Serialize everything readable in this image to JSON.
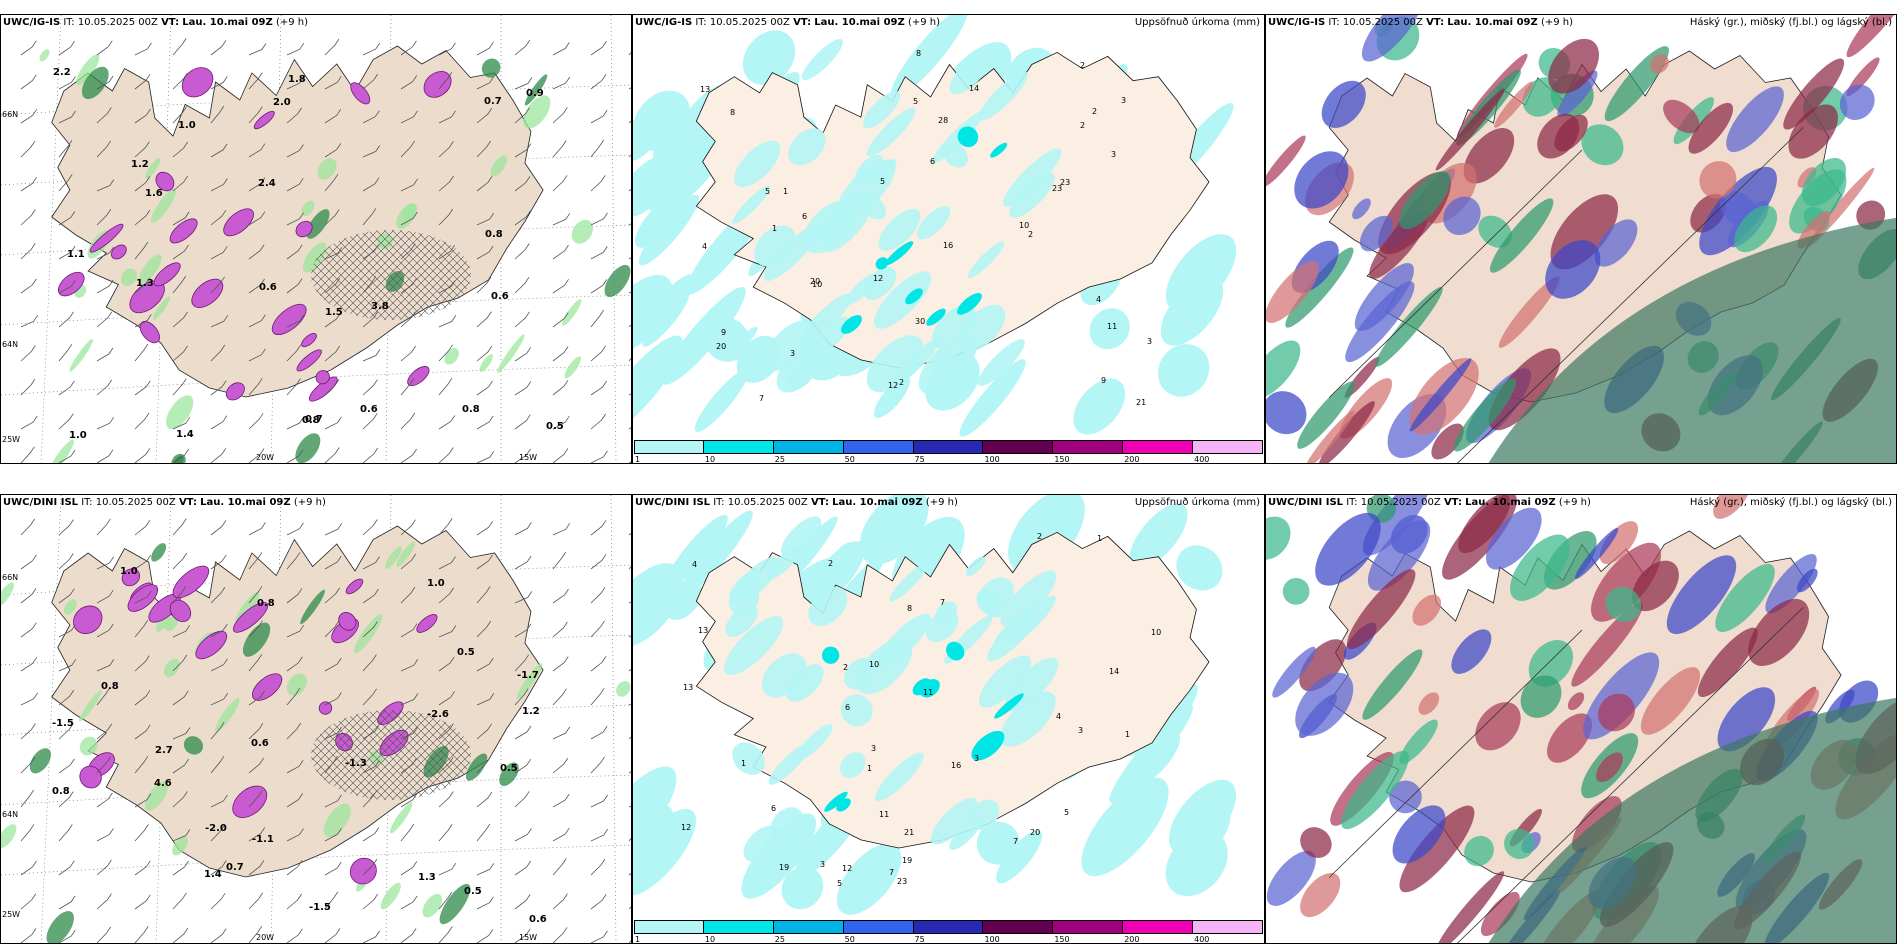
{
  "rows": [
    {
      "panels": [
        {
          "model": "UWC/IG-IS",
          "it_label": "IT:",
          "it": "10.05.2025 00Z",
          "vt_label": "VT:",
          "vt": "Lau. 10.mai 09Z",
          "lead": "(+9 h)",
          "right_title": "",
          "kind": "wind"
        },
        {
          "model": "UWC/IG-IS",
          "it_label": "IT:",
          "it": "10.05.2025 00Z",
          "vt_label": "VT:",
          "vt": "Lau. 10.mai 09Z",
          "lead": "(+9 h)",
          "right_title": "Uppsöfnuð úrkoma (mm)",
          "kind": "precip"
        },
        {
          "model": "UWC/IG-IS",
          "it_label": "IT:",
          "it": "10.05.2025 00Z",
          "vt_label": "VT:",
          "vt": "Lau. 10.mai 09Z",
          "lead": "(+9 h)",
          "right_title": "Háský (gr.), miðský (fj.bl.) og lágský (bl.)",
          "kind": "cloud"
        }
      ]
    },
    {
      "panels": [
        {
          "model": "UWC/DINI ISL",
          "it_label": "IT:",
          "it": "10.05.2025 00Z",
          "vt_label": "VT:",
          "vt": "Lau. 10.mai 09Z",
          "lead": "(+9 h)",
          "right_title": "",
          "kind": "wind"
        },
        {
          "model": "UWC/DINI ISL",
          "it_label": "IT:",
          "it": "10.05.2025 00Z",
          "vt_label": "VT:",
          "vt": "Lau. 10.mai 09Z",
          "lead": "(+9 h)",
          "right_title": "Uppsöfnuð úrkoma (mm)",
          "kind": "precip"
        },
        {
          "model": "UWC/DINI ISL",
          "it_label": "IT:",
          "it": "10.05.2025 00Z",
          "vt_label": "VT:",
          "vt": "Lau. 10.mai 09Z",
          "lead": "(+9 h)",
          "right_title": "Háský (gr.), miðský (fj.bl.) og lágský (bl.)",
          "kind": "cloud"
        }
      ]
    }
  ],
  "axis_labels": {
    "lat_66": "66N",
    "lat_64": "64N",
    "lon_25": "25W",
    "lon_20": "20W",
    "lon_15": "15W"
  },
  "colorbar": {
    "ticks": [
      "1",
      "10",
      "25",
      "50",
      "75",
      "100",
      "150",
      "200",
      "400"
    ],
    "colors": [
      "#b4f5f5",
      "#00e6e6",
      "#00b4e6",
      "#3264f0",
      "#2828b4",
      "#640050",
      "#a0007d",
      "#f000b4",
      "#f5b4f5"
    ]
  },
  "wind_values_top": [
    "0.8",
    "3.8",
    "2.2",
    "0.6",
    "1.8",
    "2.4",
    "1.6",
    "0.7",
    "1.0",
    "0.5",
    "1.1",
    "0.8",
    "2.0",
    "1.3",
    "0.6",
    "0.6",
    "1.0",
    "0.9",
    "0.8",
    "1.2",
    "1.4",
    "0.7",
    "1.5"
  ],
  "wind_values_bottom": [
    "1.4",
    "0.6",
    "4.6",
    "-1.1",
    "-2.0",
    "-1.5",
    "0.5",
    "-2.6",
    "2.7",
    "1.2",
    "0.5",
    "0.7",
    "-1.7",
    "-1.5",
    "1.3",
    "0.8",
    "0.6",
    "1.0",
    "0.8",
    "-1.3",
    "0.8",
    "1.0",
    "0.5"
  ],
  "precip_values_top": [
    "3",
    "2",
    "1",
    "3",
    "2",
    "6",
    "9",
    "5",
    "12",
    "20",
    "10",
    "8",
    "9",
    "5",
    "13",
    "30",
    "16",
    "28",
    "21",
    "23",
    "14",
    "10",
    "23",
    "20",
    "12",
    "3",
    "4",
    "2",
    "8",
    "7",
    "1",
    "2",
    "11",
    "3",
    "5",
    "4",
    "2",
    "6"
  ],
  "precip_values_bottom": [
    "3",
    "2",
    "1",
    "12",
    "6",
    "5",
    "11",
    "13",
    "12",
    "7",
    "20",
    "23",
    "14",
    "6",
    "3",
    "10",
    "19",
    "21",
    "16",
    "11",
    "13",
    "8",
    "7",
    "19",
    "10",
    "4",
    "3",
    "2",
    "1",
    "5",
    "3",
    "2",
    "1",
    "4",
    "7",
    "1"
  ]
}
